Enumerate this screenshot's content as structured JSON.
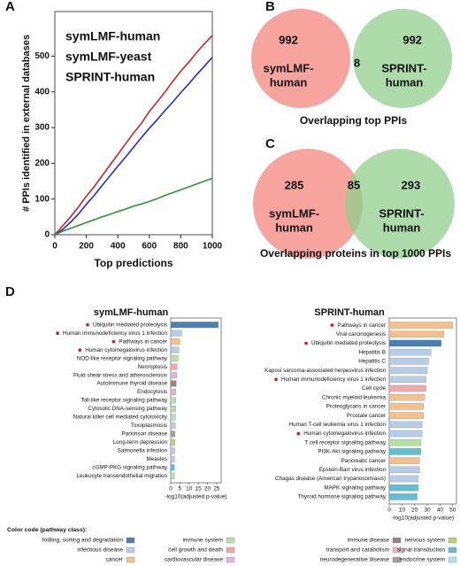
{
  "chart_data": [
    {
      "type": "line",
      "panel": "A",
      "xlabel": "Top predictions",
      "ylabel": "# PPIs identified in external databases",
      "x": [
        0,
        50,
        100,
        150,
        200,
        250,
        300,
        350,
        400,
        450,
        500,
        550,
        600,
        650,
        700,
        750,
        800,
        850,
        900,
        950,
        1000
      ],
      "series": [
        {
          "name": "symLMF-human",
          "color": "#d62020",
          "values": [
            0,
            25,
            50,
            78,
            108,
            135,
            165,
            195,
            225,
            255,
            285,
            312,
            345,
            372,
            400,
            430,
            458,
            483,
            510,
            535,
            558
          ]
        },
        {
          "name": "symLMF-yeast",
          "color": "#1f2fd0",
          "values": [
            0,
            15,
            35,
            58,
            85,
            110,
            138,
            165,
            192,
            218,
            245,
            272,
            298,
            322,
            348,
            372,
            398,
            422,
            448,
            472,
            497
          ]
        },
        {
          "name": "SPRINT-human",
          "color": "#2a9a2a",
          "values": [
            0,
            10,
            18,
            26,
            34,
            42,
            50,
            57,
            65,
            72,
            80,
            86,
            93,
            101,
            110,
            118,
            126,
            134,
            142,
            150,
            158
          ]
        }
      ],
      "xlim": [
        0,
        1000
      ],
      "ylim": [
        0,
        625
      ],
      "xticks": [
        0,
        200,
        400,
        600,
        800,
        1000
      ],
      "yticks": [
        0,
        100,
        200,
        300,
        400,
        500
      ]
    },
    {
      "type": "venn",
      "panel": "B",
      "sets": [
        [
          "symLMF-",
          "human"
        ],
        [
          "SPRINT-",
          "human"
        ]
      ],
      "colors": [
        "#f4857f",
        "#92cf8e"
      ],
      "values": [
        992,
        8,
        992
      ],
      "caption": "Overlapping top PPIs"
    },
    {
      "type": "venn",
      "panel": "C",
      "sets": [
        [
          "symLMF-",
          "human"
        ],
        [
          "SPRINT-",
          "human"
        ]
      ],
      "colors": [
        "#f4857f",
        "#92cf8e"
      ],
      "values": [
        285,
        85,
        293
      ],
      "caption": "Overlapping proteins in top 1000 PPIs"
    },
    {
      "type": "barh",
      "panel": "D",
      "title": "symLMF-human",
      "xlabel": "-log10(adjusted p-value)",
      "categories": [
        "Ubiquitin mediated proteolysis",
        "Human immunodeficiency virus 1 infection",
        "Pathways in cancer",
        "Human cytomegalovirus infection",
        "NOD-like receptor signaling pathway",
        "Necroptosis",
        "Fluid shear stress and atherosclerosis",
        "Autoimmune thyroid disease",
        "Endocytosis",
        "Toll-like receptor signaling pathway",
        "Cytosolic DNA-sensing pathway",
        "Natural killer cell mediated cytotoxicity",
        "Toxoplasmosis",
        "Parkinson disease",
        "Long-term depression",
        "Salmonella infection",
        "Measles",
        "cGMP-PKG signaling pathway",
        "Leukocyte transendothelial migration"
      ],
      "values": [
        26,
        6,
        5,
        4.5,
        4,
        3.5,
        3.3,
        3,
        2.8,
        2.8,
        2.7,
        2.6,
        2.5,
        2.4,
        2.3,
        2.2,
        2.1,
        2,
        2
      ],
      "colors": [
        "#4a7fb5",
        "#b8cce8",
        "#f5c08a",
        "#b8cce8",
        "#b8e0a0",
        "#f0a8a8",
        "#d8b8e0",
        "#a08078",
        "#e8b4c8",
        "#b8e0a0",
        "#b8e0a0",
        "#b8e0a0",
        "#b8cce8",
        "#a0a0a0",
        "#c0d070",
        "#b8cce8",
        "#b8cce8",
        "#60c0d0",
        "#b8e0a0"
      ],
      "highlighted": [
        true,
        true,
        true,
        true,
        false,
        false,
        false,
        false,
        false,
        false,
        false,
        false,
        false,
        false,
        false,
        false,
        false,
        false,
        false
      ],
      "xlim": [
        0,
        27.5
      ],
      "xticks": [
        0,
        5,
        10,
        15,
        20,
        25
      ]
    },
    {
      "type": "barh",
      "title": "SPRINT-human",
      "xlabel": "-log10(adjusted p-value)",
      "categories": [
        "Pathways in cancer",
        "Viral carcinogenesis",
        "Ubiquitin mediated proteolysis",
        "Hepatitis B",
        "Hepatitis C",
        "Kaposi sarcoma-associated herpesvirus infection",
        "Human immunodeficiency virus 1 infection",
        "Cell cycle",
        "Chronic myeloid leukemia",
        "Proteoglycans in cancer",
        "Prostate cancer",
        "Human T-cell leukemia virus 1 infection",
        "Human cytomegalovirus infection",
        "T cell receptor signaling pathway",
        "PI3K-Akt signaling pathway",
        "Pancreatic cancer",
        "Epstein-Barr virus infection",
        "Chagas disease (American trypanosomiasis)",
        "MAPK signaling pathway",
        "Thyroid hormone signaling pathway"
      ],
      "values": [
        50,
        43,
        41,
        33,
        31,
        30,
        29,
        29,
        28,
        27,
        27,
        26,
        26,
        25,
        25,
        24,
        24,
        23,
        23,
        22
      ],
      "colors": [
        "#f5c08a",
        "#f5c08a",
        "#4a7fb5",
        "#b8cce8",
        "#b8cce8",
        "#b8cce8",
        "#b8cce8",
        "#f0a8a8",
        "#f5c08a",
        "#f5c08a",
        "#f5c08a",
        "#b8cce8",
        "#b8cce8",
        "#b8e0a0",
        "#60c0d0",
        "#f5c08a",
        "#b8cce8",
        "#b8cce8",
        "#60c0d0",
        "#60c0d0"
      ],
      "highlighted": [
        true,
        false,
        true,
        false,
        false,
        false,
        true,
        false,
        false,
        false,
        false,
        false,
        true,
        false,
        false,
        false,
        false,
        false,
        false,
        false
      ],
      "xlim": [
        0,
        53
      ],
      "xticks": [
        0,
        10,
        20,
        30,
        40,
        50
      ]
    }
  ],
  "color_legend": {
    "title": "Color code (pathway class):",
    "items": [
      {
        "name": "folding, sorting and degradation",
        "color": "#4a7fb5"
      },
      {
        "name": "infectious disease",
        "color": "#b8cce8"
      },
      {
        "name": "cancer",
        "color": "#f5c08a"
      },
      {
        "name": "immune system",
        "color": "#b8e0a0"
      },
      {
        "name": "cell growth and death",
        "color": "#f0a8a8"
      },
      {
        "name": "cardiovascular disease",
        "color": "#d8b8e0"
      },
      {
        "name": "immune disease",
        "color": "#a08078"
      },
      {
        "name": "transport and catabolism",
        "color": "#e8b4c8"
      },
      {
        "name": "neurodegenerative disease",
        "color": "#a0a0a0"
      },
      {
        "name": "nervous system",
        "color": "#c0d070"
      },
      {
        "name": "signal transduction",
        "color": "#60c0d0"
      },
      {
        "name": "endocrine system",
        "color": "#b0e0f0"
      }
    ]
  }
}
